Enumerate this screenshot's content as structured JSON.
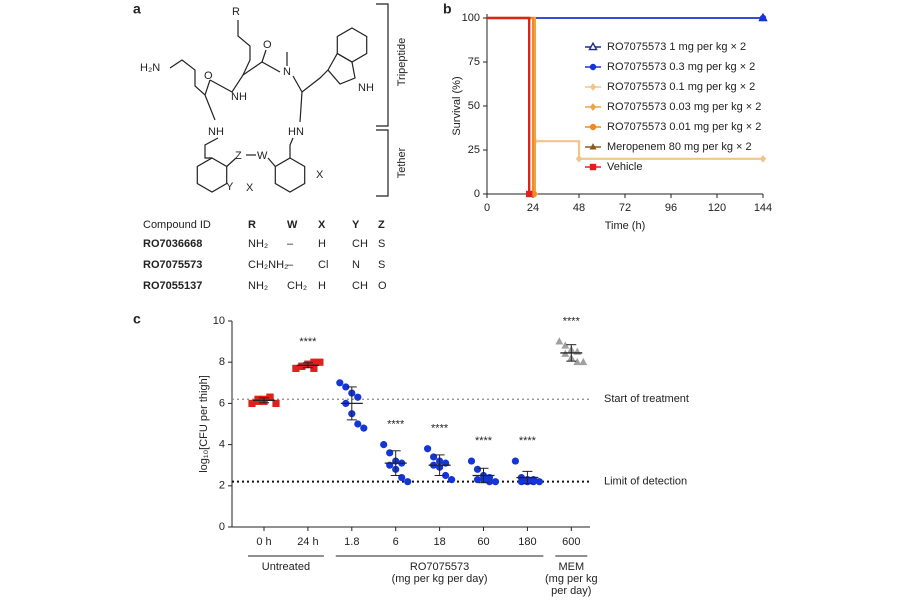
{
  "panels": [
    "a",
    "b",
    "c"
  ],
  "structure": {
    "labels": [
      "R",
      "H₂N",
      "O",
      "NH",
      "O",
      "N",
      "NH",
      "NH",
      "HN",
      "Z",
      "W",
      "X",
      "X",
      "Y"
    ],
    "brackets": [
      "Tripeptide",
      "Tether"
    ]
  },
  "table": {
    "header": [
      "Compound ID",
      "R",
      "W",
      "X",
      "Y",
      "Z"
    ],
    "rows": [
      [
        "RO7036668",
        "NH₂",
        "–",
        "H",
        "CH",
        "S"
      ],
      [
        "RO7075573",
        "CH₂NH₂",
        "–",
        "Cl",
        "N",
        "S"
      ],
      [
        "RO7055137",
        "NH₂",
        "CH₂",
        "H",
        "CH",
        "O"
      ]
    ]
  },
  "chart_data": [
    {
      "type": "line",
      "step": true,
      "xlabel": "Time (h)",
      "ylabel": "Survival (%)",
      "xlim": [
        0,
        144
      ],
      "xticks": [
        0,
        24,
        48,
        72,
        96,
        120,
        144
      ],
      "ylim": [
        0,
        100
      ],
      "yticks": [
        0,
        25,
        50,
        75,
        100
      ],
      "legend": "upper right",
      "series": [
        {
          "name": "RO7075573 1 mg per kg × 2",
          "color": "#1c2b8c",
          "marker": "triangle-open",
          "x": [
            0,
            144
          ],
          "values": [
            100,
            100
          ]
        },
        {
          "name": "RO7075573 0.3 mg per kg × 2",
          "color": "#1536d6",
          "marker": "circle",
          "x": [
            0,
            144
          ],
          "values": [
            100,
            100
          ]
        },
        {
          "name": "RO7075573 0.1 mg per kg × 2",
          "color": "#f3c48a",
          "marker": "diamond",
          "x": [
            0,
            25,
            48,
            144
          ],
          "values": [
            100,
            30,
            20,
            20
          ]
        },
        {
          "name": "RO7075573 0.03 mg per kg × 2",
          "color": "#eba34a",
          "marker": "diamond",
          "x": [
            0,
            25
          ],
          "values": [
            100,
            0
          ]
        },
        {
          "name": "RO7075573 0.01 mg per kg × 2",
          "color": "#f08c1e",
          "marker": "circle",
          "x": [
            0,
            24
          ],
          "values": [
            100,
            0
          ]
        },
        {
          "name": "Meropenem 80 mg per kg × 2",
          "color": "#8c5a1e",
          "marker": "triangle",
          "x": [
            0,
            22
          ],
          "values": [
            100,
            0
          ]
        },
        {
          "name": "Vehicle",
          "color": "#e0201c",
          "marker": "square",
          "x": [
            0,
            22
          ],
          "values": [
            100,
            0
          ]
        }
      ]
    },
    {
      "type": "dot",
      "ylabel": "log₁₀[CFU per thigh]",
      "ylim": [
        0,
        10
      ],
      "yticks": [
        0,
        2,
        4,
        6,
        8,
        10
      ],
      "categories": [
        "0 h",
        "24 h",
        "1.8",
        "6",
        "18",
        "60",
        "180",
        "600"
      ],
      "series": [
        {
          "color": "#e0201c",
          "marker": "square",
          "values": [
            6.0,
            6.1,
            6.2,
            6.3,
            6.2,
            6.1,
            6.3,
            6.0
          ],
          "mean": 6.15,
          "sd": 0.12
        },
        {
          "color": "#e0201c",
          "marker": "square",
          "values": [
            7.7,
            7.8,
            7.9,
            8.0,
            7.8,
            7.9,
            7.7,
            8.0
          ],
          "mean": 7.85,
          "sd": 0.12,
          "annotation": "****"
        },
        {
          "color": "#1536d6",
          "marker": "circle",
          "values": [
            7.0,
            6.8,
            6.5,
            6.3,
            6.0,
            5.5,
            5.0,
            4.8
          ],
          "mean": 6.0,
          "sd": 0.8
        },
        {
          "color": "#1536d6",
          "marker": "circle",
          "values": [
            4.0,
            3.6,
            3.2,
            3.1,
            3.0,
            2.8,
            2.4,
            2.2
          ],
          "mean": 3.1,
          "sd": 0.6,
          "annotation": "****"
        },
        {
          "color": "#1536d6",
          "marker": "circle",
          "values": [
            3.8,
            3.4,
            3.2,
            3.1,
            3.0,
            2.9,
            2.5,
            2.3
          ],
          "mean": 3.0,
          "sd": 0.5,
          "annotation": "****"
        },
        {
          "color": "#1536d6",
          "marker": "circle",
          "values": [
            3.2,
            2.8,
            2.5,
            2.4,
            2.3,
            2.3,
            2.2,
            2.2
          ],
          "mean": 2.5,
          "sd": 0.35,
          "annotation": "****"
        },
        {
          "color": "#1536d6",
          "marker": "circle",
          "values": [
            3.2,
            2.4,
            2.3,
            2.3,
            2.2,
            2.2,
            2.2,
            2.2
          ],
          "mean": 2.4,
          "sd": 0.3,
          "annotation": "****"
        },
        {
          "color": "#a0a0a0",
          "marker": "triangle",
          "values": [
            9.0,
            8.8,
            8.6,
            8.5,
            8.4,
            8.2,
            8.0,
            8.0
          ],
          "mean": 8.45,
          "sd": 0.4,
          "annotation": "****"
        }
      ],
      "hlines": [
        {
          "value": 6.2,
          "label": "Start of treatment",
          "color": "#888888"
        },
        {
          "value": 2.2,
          "label": "Limit of detection",
          "color": "#111111"
        }
      ],
      "x_groups": [
        {
          "label": [
            "Untreated"
          ],
          "span": [
            0,
            1
          ]
        },
        {
          "label": [
            "RO7075573",
            "(mg per kg per day)"
          ],
          "span": [
            2,
            6
          ]
        },
        {
          "label": [
            "MEM",
            "(mg per kg",
            "per day)"
          ],
          "span": [
            7,
            7
          ]
        }
      ]
    }
  ]
}
